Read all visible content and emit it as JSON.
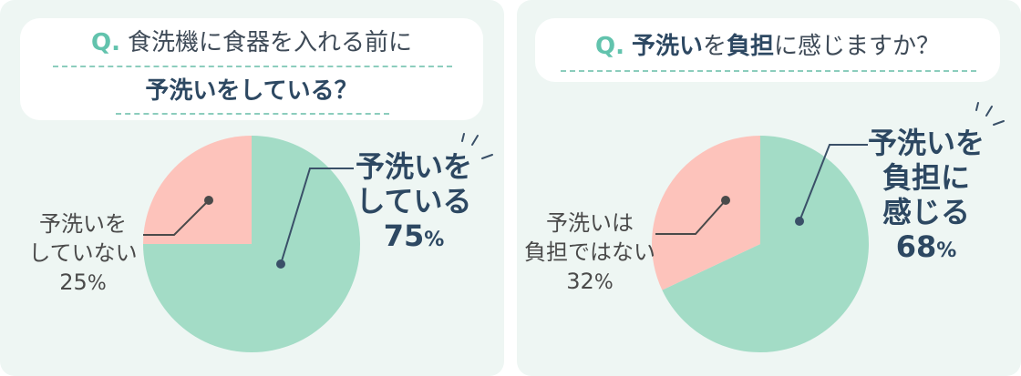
{
  "colors": {
    "major": "#a3dcc6",
    "minor": "#fdc3bb",
    "panel_bg": "#eef6f3",
    "accent": "#62c3ad",
    "text_dark": "#2d4862",
    "leader": "#3a5068"
  },
  "left": {
    "question": {
      "q_prefix": "Q.",
      "line1": "食洗機に食器を入れる前に",
      "line2": "予洗いをしている？"
    },
    "major": {
      "line1": "予洗いを",
      "line2": "している",
      "pct": "75",
      "unit": "%"
    },
    "minor": {
      "line1": "予洗いを",
      "line2": "していない",
      "pct": "25",
      "unit": "%"
    }
  },
  "right": {
    "question": {
      "q_prefix": "Q.",
      "bold1": "予洗い",
      "normal1": "を",
      "bold2": "負担",
      "normal2": "に感じますか？"
    },
    "major": {
      "line1": "予洗いを",
      "line2": "負担に",
      "line3": "感じる",
      "pct": "68",
      "unit": "%"
    },
    "minor": {
      "line1": "予洗いは",
      "line2": "負担ではない",
      "pct": "32",
      "unit": "%"
    }
  },
  "chart_data": [
    {
      "type": "pie",
      "categories": [
        "予洗いをしている",
        "予洗いをしていない"
      ],
      "values": [
        75,
        25
      ],
      "title": "Q. 食洗機に食器を入れる前に予洗いをしている？"
    },
    {
      "type": "pie",
      "categories": [
        "予洗いを負担に感じる",
        "予洗いは負担ではない"
      ],
      "values": [
        68,
        32
      ],
      "title": "Q. 予洗いを負担に感じますか？"
    }
  ]
}
